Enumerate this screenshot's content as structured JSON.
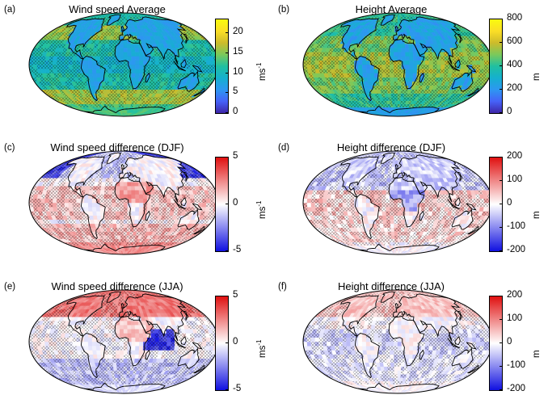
{
  "panels": [
    {
      "label": "(a)",
      "title": "Wind speed Average",
      "type": "avg_wind",
      "colorbar": {
        "colormap": "parula",
        "ticks": [
          "20",
          "15",
          "10",
          "5",
          "0"
        ],
        "tick_values": [
          20,
          15,
          10,
          5,
          0
        ],
        "range": [
          0,
          23.5
        ],
        "unit_base": "ms",
        "unit_sup": "-1"
      }
    },
    {
      "label": "(b)",
      "title": "Height Average",
      "type": "avg_height",
      "colorbar": {
        "colormap": "parula",
        "ticks": [
          "800",
          "600",
          "400",
          "200",
          "0"
        ],
        "tick_values": [
          800,
          600,
          400,
          200,
          0
        ],
        "range": [
          0,
          800
        ],
        "unit_base": "m",
        "unit_sup": ""
      }
    },
    {
      "label": "(c)",
      "title": "Wind speed difference (DJF)",
      "type": "diff_wind_djf",
      "colorbar": {
        "colormap": "bwr",
        "ticks": [
          "5",
          "0",
          "-5"
        ],
        "tick_values": [
          5,
          0,
          -5
        ],
        "range": [
          -5,
          5
        ],
        "unit_base": "ms",
        "unit_sup": "-1"
      }
    },
    {
      "label": "(d)",
      "title": "Height difference (DJF)",
      "type": "diff_height_djf",
      "colorbar": {
        "colormap": "bwr",
        "ticks": [
          "200",
          "100",
          "0",
          "-100",
          "-200"
        ],
        "tick_values": [
          200,
          100,
          0,
          -100,
          -200
        ],
        "range": [
          -200,
          200
        ],
        "unit_base": "m",
        "unit_sup": ""
      }
    },
    {
      "label": "(e)",
      "title": "Wind speed difference (JJA)",
      "type": "diff_wind_jja",
      "colorbar": {
        "colormap": "bwr",
        "ticks": [
          "5",
          "0",
          "-5"
        ],
        "tick_values": [
          5,
          0,
          -5
        ],
        "range": [
          -5,
          5
        ],
        "unit_base": "ms",
        "unit_sup": "-1"
      }
    },
    {
      "label": "(f)",
      "title": "Height difference (JJA)",
      "type": "diff_height_jja",
      "colorbar": {
        "colormap": "bwr",
        "ticks": [
          "200",
          "100",
          "0",
          "-100",
          "-200"
        ],
        "tick_values": [
          200,
          100,
          0,
          -100,
          -200
        ],
        "range": [
          -200,
          200
        ],
        "unit_base": "m",
        "unit_sup": ""
      }
    }
  ],
  "chart_data": [
    {
      "type": "heatmap",
      "title": "Wind speed Average",
      "projection": "mollweide",
      "hatching": true,
      "colorbar_range": [
        0,
        23.5
      ],
      "colorbar_unit": "ms-1"
    },
    {
      "type": "heatmap",
      "title": "Height Average",
      "projection": "mollweide",
      "hatching": true,
      "colorbar_range": [
        0,
        800
      ],
      "colorbar_unit": "m"
    },
    {
      "type": "heatmap",
      "title": "Wind speed difference (DJF)",
      "projection": "mollweide",
      "hatching": true,
      "colorbar_range": [
        -5,
        5
      ],
      "colorbar_unit": "ms-1"
    },
    {
      "type": "heatmap",
      "title": "Height difference (DJF)",
      "projection": "mollweide",
      "hatching": true,
      "colorbar_range": [
        -200,
        200
      ],
      "colorbar_unit": "m"
    },
    {
      "type": "heatmap",
      "title": "Wind speed difference (JJA)",
      "projection": "mollweide",
      "hatching": true,
      "colorbar_range": [
        -5,
        5
      ],
      "colorbar_unit": "ms-1"
    },
    {
      "type": "heatmap",
      "title": "Height difference (JJA)",
      "projection": "mollweide",
      "hatching": true,
      "colorbar_range": [
        -200,
        200
      ],
      "colorbar_unit": "m"
    }
  ],
  "colors": {
    "parula": [
      "#3e26a8",
      "#4662f8",
      "#2d97f1",
      "#15b0cf",
      "#20c0a0",
      "#7bc95b",
      "#cdbb2b",
      "#fbde26",
      "#f9fb0e"
    ],
    "bwr": [
      "#1010e0",
      "#ffffff",
      "#e01010"
    ]
  }
}
